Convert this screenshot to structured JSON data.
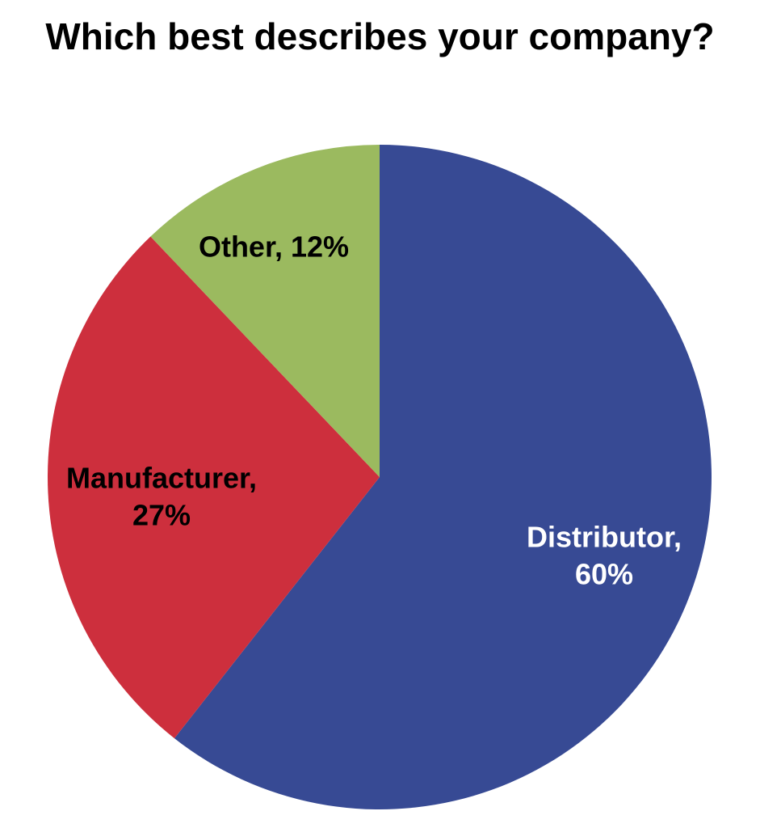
{
  "chart_data": {
    "type": "pie",
    "title": "Which best describes your company?",
    "slices": [
      {
        "label": "Distributor",
        "value": 60,
        "display": [
          "Distributor,",
          "60%"
        ],
        "color": "#374a94",
        "label_color": "#ffffff"
      },
      {
        "label": "Manufacturer",
        "value": 27,
        "display": [
          "Manufacturer,",
          "27%"
        ],
        "color": "#cd2f3d",
        "label_color": "#000000"
      },
      {
        "label": "Other",
        "value": 12,
        "display": [
          "Other, 12%"
        ],
        "color": "#9bba5f",
        "label_color": "#000000"
      }
    ],
    "start_angle": "12 o'clock",
    "direction": "clockwise",
    "legend": "none"
  }
}
